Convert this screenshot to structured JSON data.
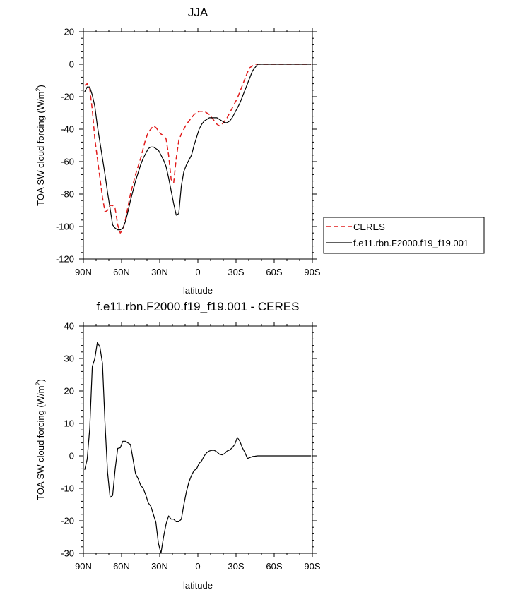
{
  "chart_data": [
    {
      "type": "line",
      "title": "JJA",
      "xlabel": "latitude",
      "ylabel": "TOA SW cloud forcing (W/m",
      "ylabel_sup": "2",
      "ylabel_close": ")",
      "xlim": [
        90,
        -90
      ],
      "ylim": [
        -120,
        20
      ],
      "xticks": [
        {
          "value": 90,
          "label": "90N"
        },
        {
          "value": 60,
          "label": "60N"
        },
        {
          "value": 30,
          "label": "30N"
        },
        {
          "value": 0,
          "label": "0"
        },
        {
          "value": -30,
          "label": "30S"
        },
        {
          "value": -60,
          "label": "60S"
        },
        {
          "value": -90,
          "label": "90S"
        }
      ],
      "yticks": [
        20,
        0,
        -20,
        -40,
        -60,
        -80,
        -100,
        -120
      ],
      "legend": {
        "position": "right"
      },
      "series": [
        {
          "name": "CERES",
          "color": "#e11b1b",
          "style": "dashed",
          "x": [
            89,
            87,
            85,
            83,
            81,
            79,
            77,
            75,
            73,
            71,
            69,
            67,
            65,
            63,
            61,
            59,
            57,
            55,
            53,
            51,
            49,
            47,
            45,
            43,
            41,
            39,
            37,
            35,
            33,
            31,
            29,
            27,
            25,
            23,
            21,
            19,
            17,
            15,
            13,
            11,
            9,
            7,
            5,
            3,
            1,
            -1,
            -3,
            -5,
            -7,
            -9,
            -11,
            -13,
            -15,
            -17,
            -19,
            -21,
            -23,
            -25,
            -27,
            -29,
            -31,
            -33,
            -35,
            -37,
            -39,
            -41,
            -43,
            -45,
            -47,
            -49,
            -51,
            -53,
            -55,
            -57,
            -59,
            -61,
            -63,
            -65,
            -67,
            -69,
            -71,
            -73,
            -75,
            -77,
            -79,
            -81,
            -83,
            -85,
            -87,
            -89
          ],
          "values": [
            -13,
            -12,
            -15,
            -28,
            -46,
            -58,
            -70,
            -82,
            -91,
            -90,
            -87,
            -87,
            -89,
            -99,
            -104,
            -102,
            -96,
            -88,
            -80,
            -74,
            -68,
            -63,
            -58,
            -52,
            -46,
            -42,
            -40,
            -38,
            -39,
            -41,
            -43,
            -44,
            -46,
            -56,
            -71,
            -73,
            -58,
            -47,
            -43,
            -40,
            -37,
            -35,
            -33,
            -31,
            -30,
            -29,
            -29,
            -29,
            -30,
            -31,
            -33,
            -35,
            -37,
            -38,
            -37,
            -35,
            -33,
            -30,
            -27,
            -24,
            -21,
            -17,
            -13,
            -9,
            -5,
            -2,
            -1,
            0,
            0,
            0,
            0,
            0,
            0,
            0,
            0,
            0,
            0,
            0,
            0,
            0,
            0,
            0,
            0,
            0,
            0,
            0,
            0,
            0,
            0,
            0
          ]
        },
        {
          "name": "f.e11.rbn.F2000.f19_f19.001",
          "color": "#000000",
          "style": "solid",
          "x": [
            89,
            87,
            85,
            83,
            81,
            79,
            77,
            75,
            73,
            71,
            69,
            67,
            65,
            63,
            61,
            59,
            57,
            55,
            53,
            51,
            49,
            47,
            45,
            43,
            41,
            39,
            37,
            35,
            33,
            31,
            29,
            27,
            25,
            23,
            21,
            19,
            17,
            15,
            13,
            11,
            9,
            7,
            5,
            3,
            1,
            -1,
            -3,
            -5,
            -7,
            -9,
            -11,
            -13,
            -15,
            -17,
            -19,
            -21,
            -23,
            -25,
            -27,
            -29,
            -31,
            -33,
            -35,
            -37,
            -39,
            -41,
            -43,
            -45,
            -47,
            -49,
            -51,
            -53,
            -55,
            -57,
            -59,
            -61,
            -63,
            -65,
            -67,
            -69,
            -71,
            -73,
            -75,
            -77,
            -79,
            -81,
            -83,
            -85,
            -87,
            -89
          ],
          "values": [
            -17,
            -14,
            -14,
            -19,
            -26,
            -38,
            -48,
            -58,
            -68,
            -79,
            -89,
            -99,
            -101,
            -102,
            -102,
            -101,
            -97,
            -91,
            -84,
            -78,
            -72,
            -67,
            -62,
            -58,
            -55,
            -52,
            -51,
            -51,
            -52,
            -53,
            -56,
            -59,
            -63,
            -70,
            -78,
            -86,
            -93,
            -92,
            -75,
            -66,
            -62,
            -59,
            -56,
            -50,
            -45,
            -40,
            -37,
            -35,
            -34,
            -33,
            -33,
            -33,
            -33,
            -34,
            -35,
            -36,
            -36,
            -35,
            -33,
            -30,
            -27,
            -24,
            -20,
            -16,
            -12,
            -8,
            -4,
            -2,
            0,
            0,
            0,
            0,
            0,
            0,
            0,
            0,
            0,
            0,
            0,
            0,
            0,
            0,
            0,
            0,
            0,
            0,
            0,
            0,
            0,
            0
          ]
        }
      ]
    },
    {
      "type": "line",
      "title": "f.e11.rbn.F2000.f19_f19.001 - CERES",
      "xlabel": "latitude",
      "ylabel": "TOA SW cloud forcing (W/m",
      "ylabel_sup": "2",
      "ylabel_close": ")",
      "xlim": [
        90,
        -90
      ],
      "ylim": [
        -30,
        40
      ],
      "xticks": [
        {
          "value": 90,
          "label": "90N"
        },
        {
          "value": 60,
          "label": "60N"
        },
        {
          "value": 30,
          "label": "30N"
        },
        {
          "value": 0,
          "label": "0"
        },
        {
          "value": -30,
          "label": "30S"
        },
        {
          "value": -60,
          "label": "60S"
        },
        {
          "value": -90,
          "label": "90S"
        }
      ],
      "yticks": [
        40,
        30,
        20,
        10,
        0,
        -10,
        -20,
        -30
      ],
      "series": [
        {
          "name": "f.e11.rbn.F2000.f19_f19.001 - CERES",
          "color": "#000000",
          "style": "solid",
          "x": [
            89,
            87,
            85,
            83,
            81,
            79,
            77,
            75,
            73,
            71,
            69,
            67,
            65,
            63,
            61,
            59,
            57,
            55,
            53,
            51,
            49,
            47,
            45,
            43,
            41,
            39,
            37,
            35,
            33,
            31,
            29,
            27,
            25,
            23,
            21,
            19,
            17,
            15,
            13,
            11,
            9,
            7,
            5,
            3,
            1,
            -1,
            -3,
            -5,
            -7,
            -9,
            -11,
            -13,
            -15,
            -17,
            -19,
            -21,
            -23,
            -25,
            -27,
            -29,
            -31,
            -33,
            -35,
            -37,
            -39,
            -41,
            -43,
            -45,
            -47,
            -49,
            -51,
            -53,
            -55,
            -57,
            -59,
            -61,
            -63,
            -65,
            -67,
            -69,
            -71,
            -73,
            -75,
            -77,
            -79,
            -81,
            -83,
            -85,
            -87,
            -89
          ],
          "values": [
            -4.3,
            -1,
            8.5,
            27.5,
            30,
            35,
            33.5,
            28.5,
            10,
            -5,
            -12.8,
            -12.2,
            -4,
            2.3,
            2.5,
            4.5,
            4.5,
            4,
            3.5,
            -1,
            -5.5,
            -7,
            -9,
            -10,
            -12,
            -14.5,
            -15.5,
            -18,
            -20.5,
            -27,
            -30,
            -25,
            -21,
            -18.5,
            -19.5,
            -19.5,
            -20.3,
            -20.3,
            -19.5,
            -15,
            -11,
            -8,
            -6,
            -4.5,
            -4,
            -2.3,
            -1.5,
            0,
            1,
            1.5,
            1.7,
            1.7,
            1.2,
            0.5,
            0.3,
            0.7,
            1.5,
            1.8,
            2.5,
            3.5,
            5.7,
            4.5,
            2.5,
            1,
            -0.8,
            -0.5,
            -0.2,
            -0.1,
            0,
            0,
            0,
            0,
            0,
            0,
            0,
            0,
            0,
            0,
            0,
            0,
            0,
            0,
            0,
            0,
            0,
            0,
            0,
            0,
            0,
            0
          ]
        }
      ]
    }
  ]
}
